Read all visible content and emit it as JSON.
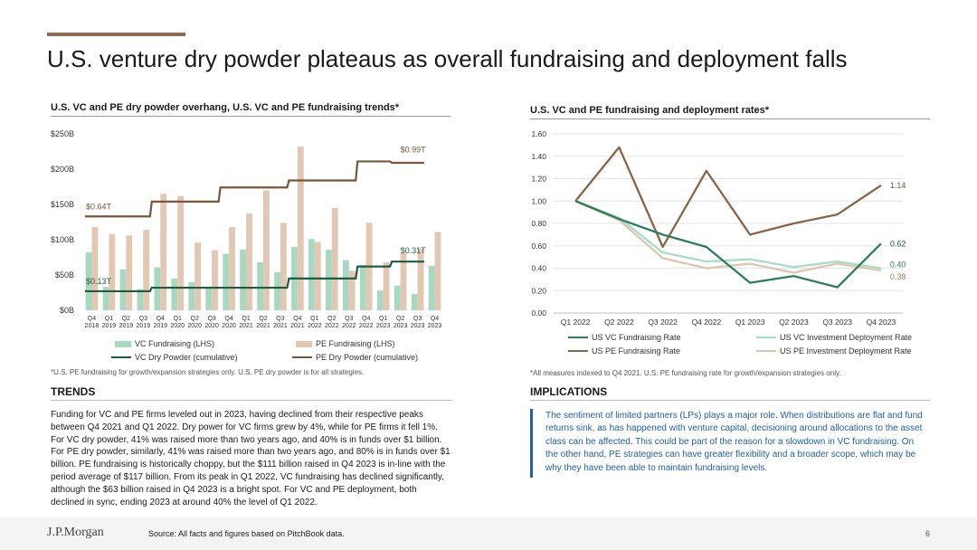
{
  "page": {
    "title": "U.S. venture dry powder plateaus as overall fundraising and deployment falls",
    "logo": "J.P.Morgan",
    "source": "Source: All facts and figures based on PitchBook data.",
    "page_number": "6"
  },
  "colors": {
    "vc_fund_bar": "#a9d8c0",
    "pe_fund_bar": "#e2c7b3",
    "vc_powder_line": "#1f5c3f",
    "pe_powder_line": "#7a5638",
    "vc_fund_rate": "#2e7d5b",
    "vc_deploy_rate": "#a8dcc4",
    "pe_fund_rate": "#8a6446",
    "pe_deploy_rate": "#dcc6b0",
    "accent": "#8a6a50",
    "implications_text": "#1f5fa8"
  },
  "left_chart": {
    "panel_title": "U.S. VC and PE dry powder overhang, U.S. VC and PE fundraising trends*",
    "footnote": "*U.S. PE fundraising for growth/expansion strategies only. U.S. PE dry powder is for all strategies.",
    "legend": {
      "vc_fund": "VC Fundraising (LHS)",
      "pe_fund": "PE Fundraising (LHS)",
      "vc_powder": "VC Dry Powder (cumulative)",
      "pe_powder": "PE Dry Powder (cumulative)"
    },
    "annotations": {
      "pe_start": "$0.64T",
      "pe_end": "$0.99T",
      "vc_start": "$0.13T",
      "vc_end": "$0.31T"
    }
  },
  "right_chart": {
    "panel_title": "U.S. VC and PE fundraising and deployment rates*",
    "footnote": "*All measures indexed to Q4 2021. U.S. PE fundraising rate for growth/expansion strategies only.",
    "legend": {
      "vc_fund_rate": "US VC Fundraising Rate",
      "vc_deploy_rate": "US VC Investment Deployment Rate",
      "pe_fund_rate": "US PE Fundraising Rate",
      "pe_deploy_rate": "US PE Investment Deployment Rate"
    },
    "end_labels": {
      "pe_fund_rate": "1.14",
      "vc_fund_rate": "0.62",
      "vc_deploy_rate": "0.40",
      "pe_deploy_rate": "0.38"
    }
  },
  "trends": {
    "heading": "TRENDS",
    "text": "Funding for VC and PE firms leveled out in 2023, having declined from their respective peaks between Q4 2021 and Q1 2022. Dry power for VC firms grew by 4%, while for PE firms it fell 1%. For VC dry powder, 41% was raised more than two years ago, and 40% is in funds over $1 billion. For PE dry powder, similarly, 41% was raised more than two years ago, and 80% is in funds over $1 billion. PE fundraising is historically choppy, but the $111 billion raised in Q4 2023 is in-line with the period average of $117 billion. From its peak in Q1 2022, VC fundraising has declined significantly, although the $63 billion raised in Q4 2023 is a bright spot. For VC and PE deployment, both declined in sync, ending 2023 at around 40% the level of Q1 2022."
  },
  "implications": {
    "heading": "IMPLICATIONS",
    "text": "The sentiment of limited partners (LPs) plays a major role. When distributions are flat and fund returns sink, as has happened with venture capital, decisioning around allocations to the asset class can be affected. This could be part of the reason for a slowdown in VC fundraising. On the other hand, PE strategies can have greater flexibility and a broader scope, which may be why they have been able to maintain fundraising levels."
  },
  "chart_data": [
    {
      "type": "bar",
      "title": "U.S. VC and PE dry powder overhang, U.S. VC and PE fundraising trends*",
      "ylim": [
        0,
        250
      ],
      "yticks": [
        0,
        50,
        100,
        150,
        200,
        250
      ],
      "ytick_labels": [
        "$0B",
        "$50B",
        "$100B",
        "$150B",
        "$200B",
        "$250B"
      ],
      "categories": [
        [
          "Q4",
          "2018"
        ],
        [
          "Q1",
          "2019"
        ],
        [
          "Q2",
          "2019"
        ],
        [
          "Q3",
          "2019"
        ],
        [
          "Q4",
          "2019"
        ],
        [
          "Q1",
          "2020"
        ],
        [
          "Q2",
          "2020"
        ],
        [
          "Q3",
          "2020"
        ],
        [
          "Q4",
          "2020"
        ],
        [
          "Q1",
          "2021"
        ],
        [
          "Q2",
          "2021"
        ],
        [
          "Q3",
          "2021"
        ],
        [
          "Q4",
          "2021"
        ],
        [
          "Q1",
          "2022"
        ],
        [
          "Q2",
          "2022"
        ],
        [
          "Q3",
          "2022"
        ],
        [
          "Q4",
          "2022"
        ],
        [
          "Q1",
          "2023"
        ],
        [
          "Q2",
          "2023"
        ],
        [
          "Q3",
          "2023"
        ],
        [
          "Q4",
          "2023"
        ]
      ],
      "series": [
        {
          "name": "VC Fundraising (LHS)",
          "kind": "bar",
          "values": [
            82,
            33,
            58,
            30,
            61,
            45,
            40,
            32,
            80,
            86,
            68,
            54,
            90,
            101,
            86,
            71,
            64,
            28,
            35,
            23,
            63
          ]
        },
        {
          "name": "PE Fundraising (LHS)",
          "kind": "bar",
          "values": [
            118,
            108,
            106,
            114,
            165,
            162,
            96,
            85,
            118,
            137,
            170,
            124,
            232,
            97,
            145,
            56,
            124,
            68,
            81,
            87,
            111
          ]
        },
        {
          "name": "VC Dry Powder (cumulative)",
          "kind": "step-line",
          "values": [
            27,
            27,
            27,
            27,
            32,
            32,
            32,
            32,
            32,
            32,
            32,
            32,
            45,
            45,
            45,
            45,
            62,
            62,
            69,
            69,
            null
          ]
        },
        {
          "name": "PE Dry Powder (cumulative)",
          "kind": "step-line",
          "values": [
            133,
            133,
            133,
            133,
            154,
            154,
            154,
            154,
            174,
            174,
            174,
            174,
            184,
            184,
            184,
            184,
            211,
            211,
            209,
            209,
            null
          ]
        }
      ]
    },
    {
      "type": "line",
      "title": "U.S. VC and PE fundraising and deployment rates*",
      "ylim": [
        0,
        1.6
      ],
      "yticks": [
        0,
        0.2,
        0.4,
        0.6,
        0.8,
        1.0,
        1.2,
        1.4,
        1.6
      ],
      "ytick_labels": [
        "0.00",
        "0.20",
        "0.40",
        "0.60",
        "0.80",
        "1.00",
        "1.20",
        "1.40",
        "1.60"
      ],
      "categories": [
        "Q1 2022",
        "Q2 2022",
        "Q3 2022",
        "Q4 2022",
        "Q1 2023",
        "Q2 2023",
        "Q3 2023",
        "Q4 2023"
      ],
      "series": [
        {
          "name": "US PE Fundraising Rate",
          "values": [
            1.0,
            1.48,
            0.59,
            1.27,
            0.7,
            0.8,
            0.88,
            1.14
          ]
        },
        {
          "name": "US VC Fundraising Rate",
          "values": [
            1.0,
            0.84,
            0.7,
            0.59,
            0.27,
            0.33,
            0.23,
            0.62
          ]
        },
        {
          "name": "US VC Investment Deployment Rate",
          "values": [
            1.0,
            0.85,
            0.54,
            0.46,
            0.48,
            0.41,
            0.46,
            0.4
          ]
        },
        {
          "name": "US PE Investment Deployment Rate",
          "values": [
            1.0,
            0.83,
            0.49,
            0.4,
            0.44,
            0.36,
            0.44,
            0.38
          ]
        }
      ]
    }
  ]
}
